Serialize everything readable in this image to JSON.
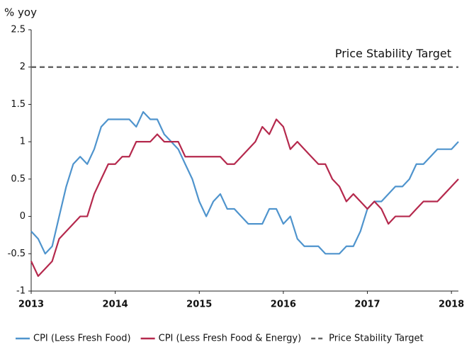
{
  "chart_data": {
    "type": "line",
    "y_label": "% yoy",
    "annotation": "Price Stability Target",
    "x": [
      2013,
      2013.083,
      2013.167,
      2013.25,
      2013.333,
      2013.417,
      2013.5,
      2013.583,
      2013.667,
      2013.75,
      2013.833,
      2013.917,
      2014,
      2014.083,
      2014.167,
      2014.25,
      2014.333,
      2014.417,
      2014.5,
      2014.583,
      2014.667,
      2014.75,
      2014.833,
      2014.917,
      2015,
      2015.083,
      2015.167,
      2015.25,
      2015.333,
      2015.417,
      2015.5,
      2015.583,
      2015.667,
      2015.75,
      2015.833,
      2015.917,
      2016,
      2016.083,
      2016.167,
      2016.25,
      2016.333,
      2016.417,
      2016.5,
      2016.583,
      2016.667,
      2016.75,
      2016.833,
      2016.917,
      2017,
      2017.083,
      2017.167,
      2017.25,
      2017.333,
      2017.417,
      2017.5,
      2017.583,
      2017.667,
      2017.75,
      2017.833,
      2017.917,
      2018,
      2018.083
    ],
    "series": [
      {
        "name": "CPI (Less Fresh Food)",
        "color": "#4f94cd",
        "values": [
          -0.2,
          -0.3,
          -0.5,
          -0.4,
          0,
          0.4,
          0.7,
          0.8,
          0.7,
          0.9,
          1.2,
          1.3,
          1.3,
          1.3,
          1.3,
          1.2,
          1.4,
          1.3,
          1.3,
          1.1,
          1,
          0.9,
          0.7,
          0.5,
          0.2,
          0,
          0.2,
          0.3,
          0.1,
          0.1,
          0,
          -0.1,
          -0.1,
          -0.1,
          0.1,
          0.1,
          -0.1,
          0,
          -0.3,
          -0.4,
          -0.4,
          -0.4,
          -0.5,
          -0.5,
          -0.5,
          -0.4,
          -0.4,
          -0.2,
          0.1,
          0.2,
          0.2,
          0.3,
          0.4,
          0.4,
          0.5,
          0.7,
          0.7,
          0.8,
          0.9,
          0.9,
          0.9,
          1
        ]
      },
      {
        "name": "CPI (Less Fresh Food & Energy)",
        "color": "#b5294d",
        "values": [
          -0.6,
          -0.8,
          -0.7,
          -0.6,
          -0.3,
          -0.2,
          -0.1,
          0,
          0,
          0.3,
          0.5,
          0.7,
          0.7,
          0.8,
          0.8,
          1,
          1,
          1,
          1.1,
          1,
          1,
          1,
          0.8,
          0.8,
          0.8,
          0.8,
          0.8,
          0.8,
          0.7,
          0.7,
          0.8,
          0.9,
          1,
          1.2,
          1.1,
          1.3,
          1.2,
          0.9,
          1,
          0.9,
          0.8,
          0.7,
          0.7,
          0.5,
          0.4,
          0.2,
          0.3,
          0.2,
          0.1,
          0.2,
          0.1,
          -0.1,
          0,
          0,
          0,
          0.1,
          0.2,
          0.2,
          0.2,
          0.3,
          0.4,
          0.5
        ]
      }
    ],
    "target": {
      "name": "Price Stability Target",
      "value": 2,
      "color": "#666666"
    },
    "xlim": [
      2013,
      2018.083
    ],
    "xticks": [
      2013,
      2014,
      2015,
      2016,
      2017,
      2018
    ],
    "ylim": [
      -1,
      2.5
    ],
    "yticks": [
      -1,
      -0.5,
      0,
      0.5,
      1,
      1.5,
      2,
      2.5
    ],
    "grid": false
  }
}
